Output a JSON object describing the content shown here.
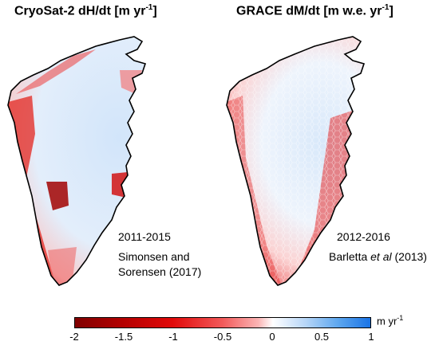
{
  "panels": {
    "left": {
      "title_main": "CryoSat-2 dH/dt [m yr",
      "title_sup": "-1",
      "title_end": "]",
      "period": "2011-2015",
      "source_line1": "Simonsen and",
      "source_line2": "Sorensen (2017)"
    },
    "right": {
      "title_main": "GRACE dM/dt [m w.e. yr",
      "title_sup": "-1",
      "title_end": "]",
      "period": "2012-2016",
      "source_author": "Barletta ",
      "source_etal": "et al",
      "source_year": " (2013)"
    }
  },
  "colorbar": {
    "ticks": [
      "-2",
      "-1.5",
      "-1",
      "-0.5",
      "0",
      "0.5",
      "1"
    ],
    "range": [
      -2,
      1
    ],
    "unit_main": "m yr",
    "unit_sup": "-1",
    "colors": {
      "min": "#800000",
      "mid_neg": "#e10a0a",
      "zero": "#ffffff",
      "max": "#1a74e6"
    }
  }
}
